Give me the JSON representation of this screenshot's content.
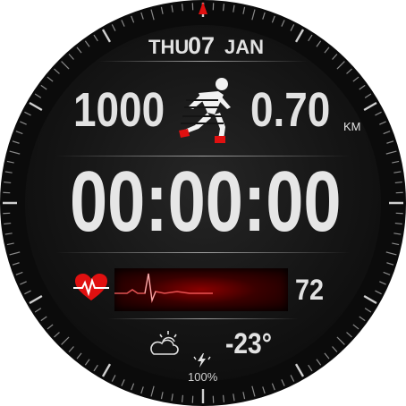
{
  "date": {
    "day": "THU",
    "date": "07",
    "month": "JAN"
  },
  "activity": {
    "steps": "1000",
    "distance": "0.70",
    "distance_unit": "KM"
  },
  "timer": {
    "value": "00:00:00"
  },
  "heart": {
    "bpm": "72"
  },
  "weather": {
    "temperature": "-23°"
  },
  "battery": {
    "percent": "100%"
  },
  "icons": {
    "runner": "runner-icon",
    "heart": "heart-rate-icon",
    "ecg": "ecg-wave-icon",
    "weather": "cloudy-sun-icon",
    "battery": "charging-bolt-icon",
    "marker": "twelve-marker-icon"
  },
  "colors": {
    "accent": "#e01010",
    "text": "#e2e2e2",
    "background": "#0b0b0b"
  }
}
